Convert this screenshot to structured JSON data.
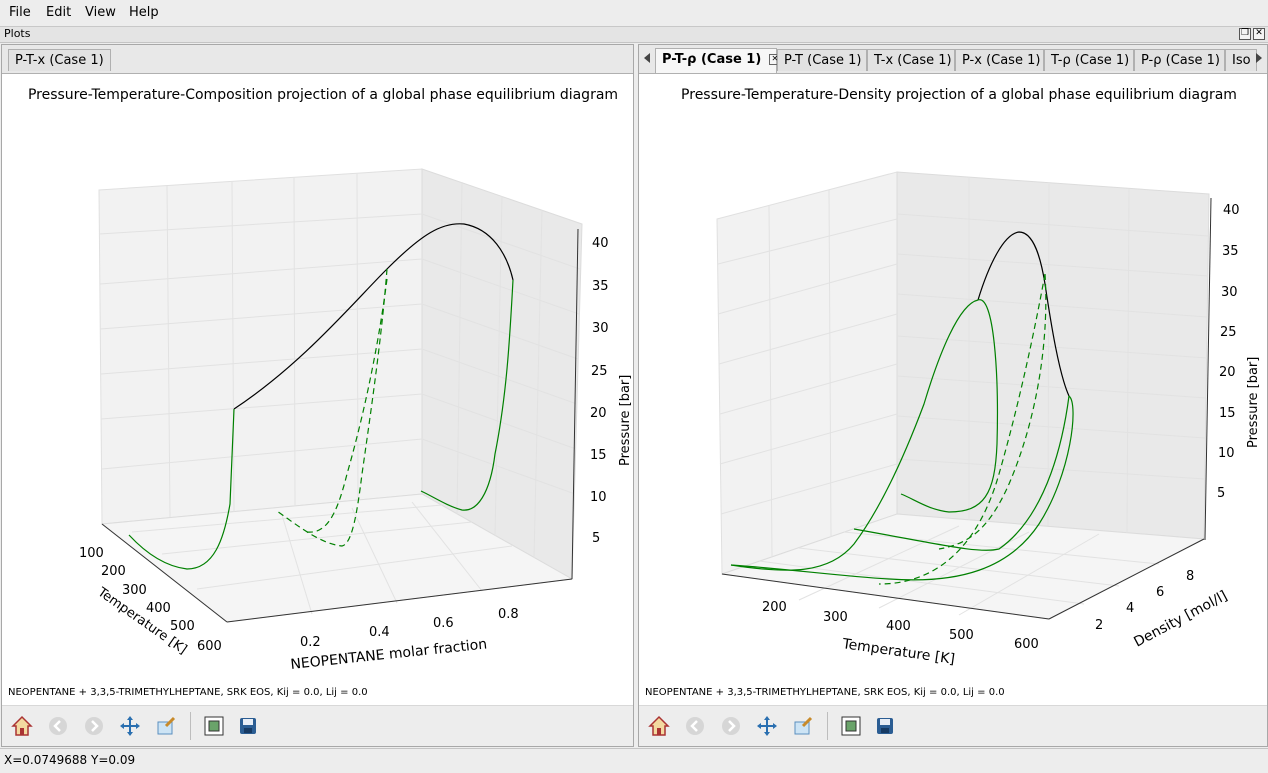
{
  "menu": {
    "file": "File",
    "edit": "Edit",
    "view": "View",
    "help": "Help"
  },
  "dock": {
    "title": "Plots"
  },
  "left_pane": {
    "tab": "P-T-x (Case 1)",
    "chart_title": "Pressure-Temperature-Composition projection of a global phase equilibrium diagram",
    "caption": "NEOPENTANE + 3,3,5-TRIMETHYLHEPTANE, SRK EOS, Kij = 0.0, Lij = 0.0"
  },
  "right_pane": {
    "tabs": [
      "P-T-ρ (Case 1)",
      "P-T (Case 1)",
      "T-x (Case 1)",
      "P-x (Case 1)",
      "T-ρ (Case 1)",
      "P-ρ (Case 1)",
      "Iso"
    ],
    "active_tab": 0,
    "chart_title": "Pressure-Temperature-Density projection of a global phase equilibrium diagram",
    "caption": "NEOPENTANE + 3,3,5-TRIMETHYLHEPTANE, SRK EOS, Kij = 0.0, Lij = 0.0"
  },
  "chart_data": [
    {
      "type": "line",
      "projection": "3d",
      "title": "Pressure-Temperature-Composition projection of a global phase equilibrium diagram",
      "xlabel": "NEOPENTANE molar fraction",
      "ylabel": "Temperature [K]",
      "zlabel": "Pressure [bar]",
      "x_ticks": [
        "0.2",
        "0.4",
        "0.6",
        "0.8"
      ],
      "y_ticks": [
        "100",
        "200",
        "300",
        "400",
        "500",
        "600"
      ],
      "z_ticks": [
        "5",
        "10",
        "15",
        "20",
        "25",
        "30",
        "35",
        "40"
      ],
      "series_colors": {
        "critical_line": "#000000",
        "pure_vapor_pressure": "#008000",
        "three_phase": "#008000"
      },
      "series": [
        {
          "style": "solid",
          "color": "#000000"
        },
        {
          "style": "solid",
          "color": "#008000"
        },
        {
          "style": "dashed",
          "color": "#008000"
        }
      ]
    },
    {
      "type": "line",
      "projection": "3d",
      "title": "Pressure-Temperature-Density projection of a global phase equilibrium diagram",
      "xlabel": "Temperature [K]",
      "ylabel": "Density [mol/l]",
      "zlabel": "Pressure [bar]",
      "x_ticks": [
        "200",
        "300",
        "400",
        "500",
        "600"
      ],
      "y_ticks": [
        "2",
        "4",
        "6",
        "8"
      ],
      "z_ticks": [
        "5",
        "10",
        "15",
        "20",
        "25",
        "30",
        "35",
        "40"
      ],
      "series": [
        {
          "style": "solid",
          "color": "#000000"
        },
        {
          "style": "solid",
          "color": "#008000"
        },
        {
          "style": "dashed",
          "color": "#008000"
        }
      ]
    }
  ],
  "status": {
    "text": "X=0.0749688 Y=0.09"
  },
  "toolbar_icons": [
    "home-icon",
    "back-icon",
    "forward-icon",
    "pan-icon",
    "zoom-icon",
    "subplots-icon",
    "save-icon"
  ]
}
